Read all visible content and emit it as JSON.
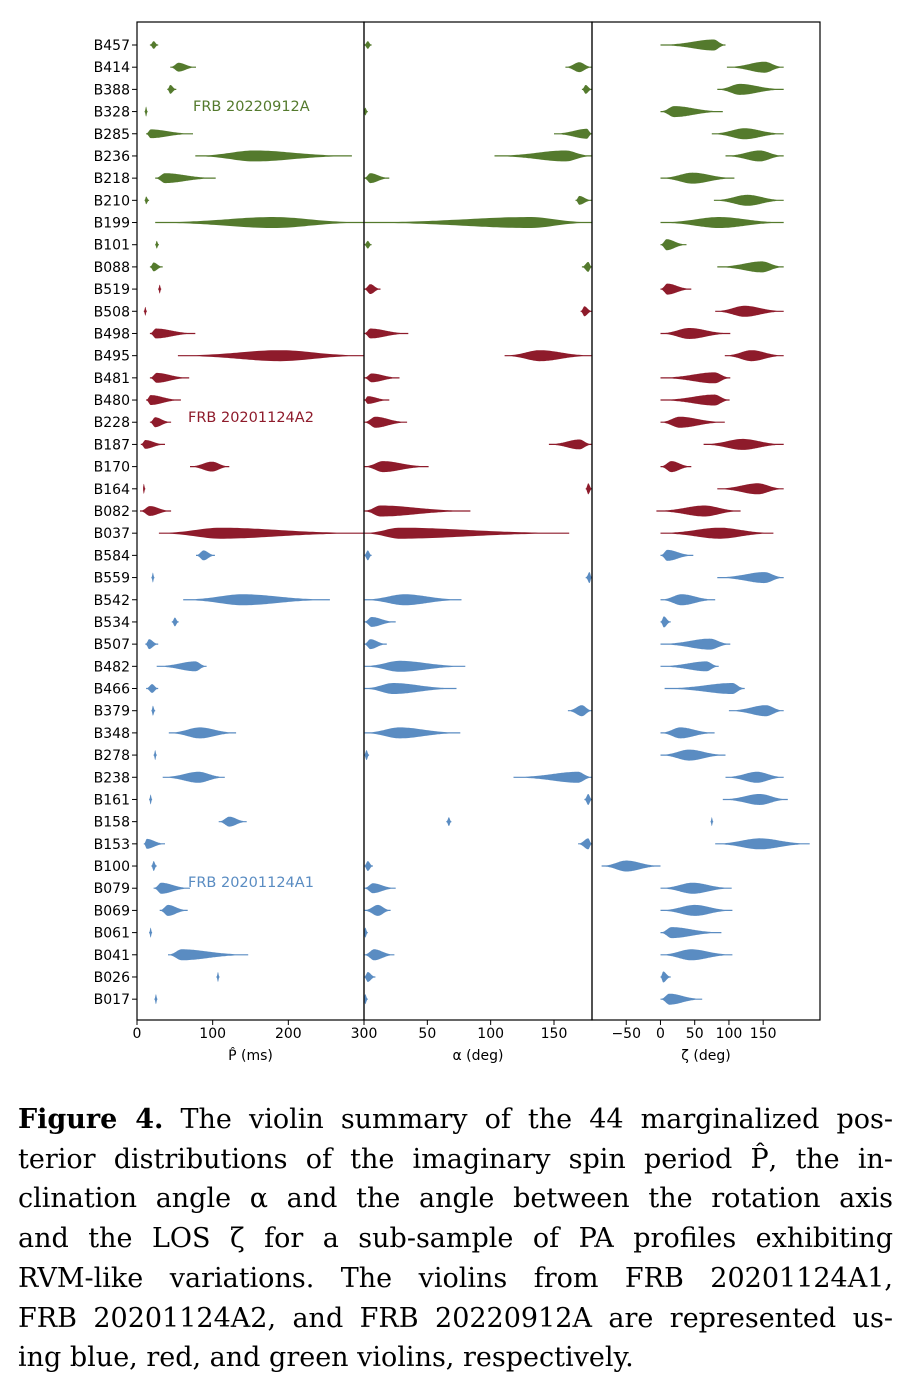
{
  "chart_data": {
    "type": "violin",
    "panels": [
      {
        "key": "P",
        "xlabel": "P̂ (ms)",
        "xlim": [
          0,
          300
        ],
        "ticks": [
          0,
          100,
          200,
          300
        ]
      },
      {
        "key": "a",
        "xlabel": "α (deg)",
        "xlim": [
          0,
          180
        ],
        "ticks": [
          50,
          100,
          150
        ]
      },
      {
        "key": "z",
        "xlabel": "ζ (deg)",
        "xlim": [
          -100,
          233
        ],
        "ticks": [
          -50,
          0,
          50,
          100,
          150
        ]
      }
    ],
    "value_format": "[low, peak, high, relative_width]",
    "groups": [
      {
        "name": "FRB 20220912A",
        "color": "#547a2d"
      },
      {
        "name": "FRB 20201124A2",
        "color": "#8e1b2b"
      },
      {
        "name": "FRB 20201124A1",
        "color": "#5a8cc2"
      }
    ],
    "rows": [
      {
        "name": "B457",
        "g": 0,
        "P": [
          17,
          22,
          28,
          0.3
        ],
        "a": [
          0,
          3,
          6,
          0.3
        ],
        "z": [
          0,
          78,
          95,
          0.45
        ]
      },
      {
        "name": "B414",
        "g": 0,
        "P": [
          44,
          55,
          78,
          0.35
        ],
        "a": [
          159,
          170,
          180,
          0.4
        ],
        "z": [
          97,
          152,
          180,
          0.45
        ]
      },
      {
        "name": "B388",
        "g": 0,
        "P": [
          40,
          44,
          52,
          0.35
        ],
        "a": [
          172,
          175,
          180,
          0.35
        ],
        "z": [
          83,
          116,
          180,
          0.45
        ]
      },
      {
        "name": "B328",
        "g": 0,
        "P": [
          10,
          12,
          14,
          0.4
        ],
        "a": [
          0,
          1,
          3,
          0.3
        ],
        "z": [
          0,
          20,
          91,
          0.45
        ]
      },
      {
        "name": "B285",
        "g": 0,
        "P": [
          12,
          18,
          74,
          0.35
        ],
        "a": [
          150,
          176,
          180,
          0.4
        ],
        "z": [
          75,
          123,
          180,
          0.45
        ]
      },
      {
        "name": "B236",
        "g": 0,
        "P": [
          77,
          155,
          284,
          0.45
        ],
        "a": [
          103,
          159,
          180,
          0.45
        ],
        "z": [
          95,
          145,
          180,
          0.45
        ]
      },
      {
        "name": "B218",
        "g": 0,
        "P": [
          24,
          37,
          104,
          0.4
        ],
        "a": [
          0,
          5,
          20,
          0.4
        ],
        "z": [
          0,
          47,
          108,
          0.45
        ]
      },
      {
        "name": "B210",
        "g": 0,
        "P": [
          10,
          12,
          16,
          0.3
        ],
        "a": [
          167,
          170,
          180,
          0.35
        ],
        "z": [
          78,
          127,
          180,
          0.45
        ]
      },
      {
        "name": "B199",
        "g": 0,
        "P": [
          24,
          180,
          300,
          0.45
        ],
        "a": [
          0,
          131,
          180,
          0.45
        ],
        "z": [
          0,
          86,
          180,
          0.45
        ]
      },
      {
        "name": "B101",
        "g": 0,
        "P": [
          24,
          26,
          29,
          0.3
        ],
        "a": [
          0,
          3,
          6,
          0.3
        ],
        "z": [
          0,
          9,
          38,
          0.45
        ]
      },
      {
        "name": "B088",
        "g": 0,
        "P": [
          17,
          22,
          34,
          0.35
        ],
        "a": [
          172,
          177,
          180,
          0.4
        ],
        "z": [
          83,
          148,
          180,
          0.45
        ]
      },
      {
        "name": "B519",
        "g": 1,
        "P": [
          28,
          30,
          32,
          0.35
        ],
        "a": [
          0,
          5,
          13,
          0.4
        ],
        "z": [
          0,
          10,
          45,
          0.45
        ]
      },
      {
        "name": "B508",
        "g": 1,
        "P": [
          9,
          11,
          13,
          0.35
        ],
        "a": [
          171,
          174,
          180,
          0.4
        ],
        "z": [
          80,
          123,
          180,
          0.45
        ]
      },
      {
        "name": "B498",
        "g": 1,
        "P": [
          17,
          25,
          77,
          0.4
        ],
        "a": [
          0,
          5,
          35,
          0.4
        ],
        "z": [
          0,
          42,
          102,
          0.45
        ]
      },
      {
        "name": "B495",
        "g": 1,
        "P": [
          54,
          189,
          300,
          0.45
        ],
        "a": [
          111,
          139,
          180,
          0.45
        ],
        "z": [
          94,
          133,
          180,
          0.45
        ]
      },
      {
        "name": "B481",
        "g": 1,
        "P": [
          17,
          26,
          69,
          0.4
        ],
        "a": [
          0,
          6,
          28,
          0.35
        ],
        "z": [
          0,
          79,
          102,
          0.45
        ]
      },
      {
        "name": "B480",
        "g": 1,
        "P": [
          12,
          18,
          58,
          0.4
        ],
        "a": [
          0,
          3,
          20,
          0.3
        ],
        "z": [
          0,
          79,
          101,
          0.45
        ]
      },
      {
        "name": "B228",
        "g": 1,
        "P": [
          17,
          24,
          45,
          0.4
        ],
        "a": [
          0,
          9,
          34,
          0.45
        ],
        "z": [
          0,
          28,
          94,
          0.45
        ]
      },
      {
        "name": "B187",
        "g": 1,
        "P": [
          5,
          11,
          37,
          0.35
        ],
        "a": [
          146,
          170,
          180,
          0.4
        ],
        "z": [
          63,
          120,
          180,
          0.45
        ]
      },
      {
        "name": "B170",
        "g": 1,
        "P": [
          70,
          99,
          122,
          0.4
        ],
        "a": [
          0,
          15,
          51,
          0.45
        ],
        "z": [
          0,
          16,
          45,
          0.45
        ]
      },
      {
        "name": "B164",
        "g": 1,
        "P": [
          8,
          9,
          11,
          0.4
        ],
        "a": [
          175,
          177,
          180,
          0.45
        ],
        "z": [
          83,
          142,
          180,
          0.45
        ]
      },
      {
        "name": "B082",
        "g": 1,
        "P": [
          4,
          17,
          45,
          0.4
        ],
        "a": [
          0,
          13,
          84,
          0.45
        ],
        "z": [
          -6,
          64,
          117,
          0.45
        ]
      },
      {
        "name": "B037",
        "g": 1,
        "P": [
          29,
          110,
          300,
          0.45
        ],
        "a": [
          0,
          28,
          162,
          0.45
        ],
        "z": [
          0,
          86,
          165,
          0.45
        ]
      },
      {
        "name": "B584",
        "g": 2,
        "P": [
          78,
          88,
          103,
          0.4
        ],
        "a": [
          0,
          3,
          6,
          0.4
        ],
        "z": [
          0,
          10,
          48,
          0.45
        ]
      },
      {
        "name": "B559",
        "g": 2,
        "P": [
          19,
          21,
          23,
          0.4
        ],
        "a": [
          175,
          178,
          180,
          0.45
        ],
        "z": [
          83,
          152,
          180,
          0.45
        ]
      },
      {
        "name": "B542",
        "g": 2,
        "P": [
          61,
          140,
          255,
          0.45
        ],
        "a": [
          0,
          32,
          77,
          0.45
        ],
        "z": [
          0,
          31,
          80,
          0.45
        ]
      },
      {
        "name": "B534",
        "g": 2,
        "P": [
          46,
          50,
          55,
          0.35
        ],
        "a": [
          0,
          6,
          25,
          0.4
        ],
        "z": [
          0,
          5,
          15,
          0.45
        ]
      },
      {
        "name": "B507",
        "g": 2,
        "P": [
          11,
          16,
          28,
          0.4
        ],
        "a": [
          0,
          5,
          18,
          0.4
        ],
        "z": [
          0,
          72,
          102,
          0.45
        ]
      },
      {
        "name": "B482",
        "g": 2,
        "P": [
          26,
          77,
          92,
          0.4
        ],
        "a": [
          0,
          28,
          80,
          0.45
        ],
        "z": [
          0,
          67,
          85,
          0.4
        ]
      },
      {
        "name": "B466",
        "g": 2,
        "P": [
          12,
          20,
          28,
          0.35
        ],
        "a": [
          0,
          23,
          73,
          0.45
        ],
        "z": [
          6,
          105,
          123,
          0.45
        ]
      },
      {
        "name": "B379",
        "g": 2,
        "P": [
          19,
          21,
          24,
          0.4
        ],
        "a": [
          161,
          172,
          180,
          0.45
        ],
        "z": [
          100,
          154,
          180,
          0.45
        ]
      },
      {
        "name": "B348",
        "g": 2,
        "P": [
          42,
          83,
          131,
          0.45
        ],
        "a": [
          0,
          28,
          76,
          0.45
        ],
        "z": [
          0,
          29,
          79,
          0.45
        ]
      },
      {
        "name": "B278",
        "g": 2,
        "P": [
          22,
          24,
          26,
          0.4
        ],
        "a": [
          0,
          2,
          4,
          0.4
        ],
        "z": [
          0,
          42,
          95,
          0.45
        ]
      },
      {
        "name": "B238",
        "g": 2,
        "P": [
          34,
          81,
          116,
          0.45
        ],
        "a": [
          118,
          169,
          180,
          0.45
        ],
        "z": [
          95,
          141,
          180,
          0.45
        ]
      },
      {
        "name": "B161",
        "g": 2,
        "P": [
          16,
          18,
          20,
          0.4
        ],
        "a": [
          174,
          177,
          180,
          0.45
        ],
        "z": [
          91,
          145,
          186,
          0.45
        ]
      },
      {
        "name": "B158",
        "g": 2,
        "P": [
          108,
          122,
          145,
          0.4
        ],
        "a": [
          65,
          67,
          69,
          0.35
        ],
        "z": [
          73,
          75,
          77,
          0.35
        ]
      },
      {
        "name": "B153",
        "g": 2,
        "P": [
          9,
          13,
          37,
          0.4
        ],
        "a": [
          169,
          177,
          180,
          0.45
        ],
        "z": [
          80,
          145,
          218,
          0.45
        ]
      },
      {
        "name": "B100",
        "g": 2,
        "P": [
          19,
          22,
          26,
          0.4
        ],
        "a": [
          0,
          3,
          7,
          0.4
        ],
        "z": [
          -86,
          -50,
          0,
          0.45
        ]
      },
      {
        "name": "B079",
        "g": 2,
        "P": [
          22,
          32,
          70,
          0.45
        ],
        "a": [
          0,
          7,
          25,
          0.4
        ],
        "z": [
          0,
          47,
          104,
          0.45
        ]
      },
      {
        "name": "B069",
        "g": 2,
        "P": [
          30,
          41,
          67,
          0.45
        ],
        "a": [
          0,
          11,
          21,
          0.45
        ],
        "z": [
          0,
          50,
          105,
          0.45
        ]
      },
      {
        "name": "B061",
        "g": 2,
        "P": [
          16,
          18,
          20,
          0.4
        ],
        "a": [
          0,
          1,
          3,
          0.4
        ],
        "z": [
          0,
          16,
          89,
          0.45
        ]
      },
      {
        "name": "B041",
        "g": 2,
        "P": [
          41,
          59,
          147,
          0.45
        ],
        "a": [
          0,
          8,
          24,
          0.45
        ],
        "z": [
          0,
          45,
          105,
          0.45
        ]
      },
      {
        "name": "B026",
        "g": 2,
        "P": [
          105,
          107,
          109,
          0.4
        ],
        "a": [
          0,
          3,
          9,
          0.4
        ],
        "z": [
          0,
          4,
          15,
          0.45
        ]
      },
      {
        "name": "B017",
        "g": 2,
        "P": [
          23,
          25,
          27,
          0.4
        ],
        "a": [
          0,
          1,
          3,
          0.4
        ],
        "z": [
          0,
          13,
          61,
          0.45
        ]
      }
    ]
  },
  "caption": {
    "label": "Figure 4.",
    "lines": [
      " The violin summary of the 44 marginalized pos-",
      "terior distributions of the imaginary spin period P̂, the in-",
      "clination angle α and the angle between the rotation axis",
      "and the LOS ζ for a sub-sample of PA profiles exhibiting",
      "RVM-like variations.  The violins from FRB 20201124A1,",
      "FRB 20201124A2, and FRB 20220912A are represented us-",
      "ing blue, red, and green violins, respectively."
    ]
  }
}
